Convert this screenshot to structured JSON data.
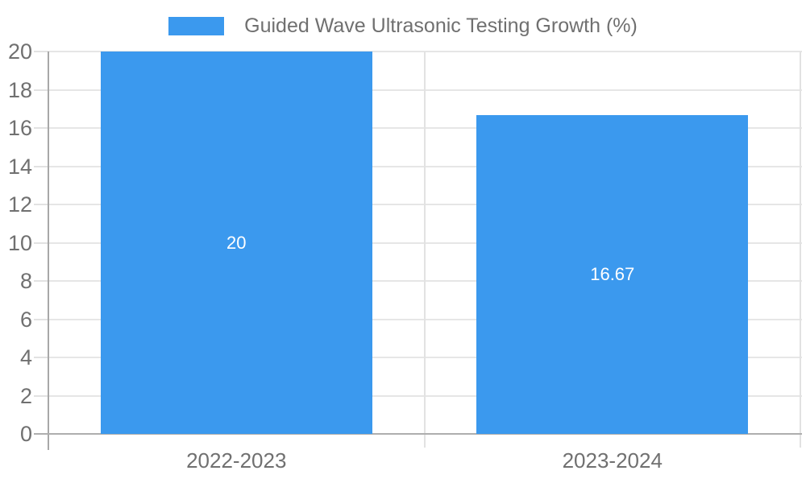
{
  "chart_data": {
    "type": "bar",
    "title": "",
    "xlabel": "",
    "ylabel": "",
    "categories": [
      "2022-2023",
      "2023-2024"
    ],
    "series": [
      {
        "name": "Guided Wave Ultrasonic Testing Growth (%)",
        "values": [
          20,
          16.67
        ]
      }
    ],
    "bar_value_labels": [
      "20",
      "16.67"
    ],
    "ylim": [
      0,
      20
    ],
    "yticks": [
      0,
      2,
      4,
      6,
      8,
      10,
      12,
      14,
      16,
      18,
      20
    ],
    "grid": true,
    "legend_position": "top-center",
    "colors": {
      "bar": "#3b99ee",
      "bar_label": "#ffffff",
      "gridline": "#e6e6e6",
      "tick": "#e2e2e2",
      "axis_line": "#a8a8a8",
      "baseline": "#aeaeae",
      "text": "#707070",
      "background": "#ffffff"
    }
  }
}
